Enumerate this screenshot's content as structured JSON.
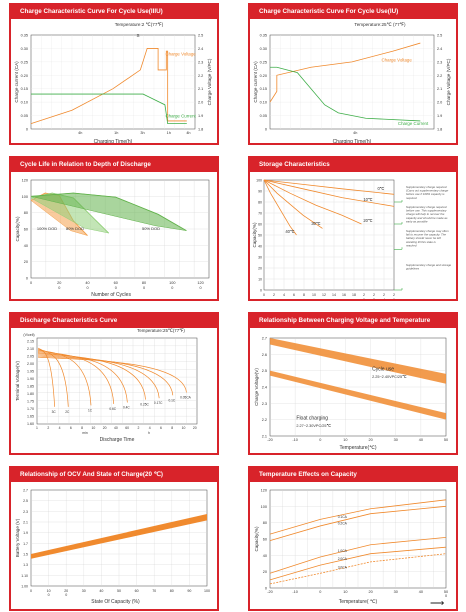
{
  "panels": [
    {
      "id": "p1",
      "title": "Charge Characteristic Curve For Cycle Use(IIIU)",
      "chart_data": {
        "type": "line",
        "temperature": "Temperature:2 ℃(77℉)",
        "xlabel": "Charging Time(h)",
        "ylabel_left": "Charge current (CA)",
        "ylabel_right": "Charge Voltage (V/PC)",
        "ylim_left": [
          0,
          0.35
        ],
        "yticks_left": [
          "0.35",
          "0.30",
          "0.25",
          "0.20",
          "0.15",
          "0.10",
          "0.05",
          "0"
        ],
        "yticks_right": [
          "2.5",
          "2.4",
          "2.3",
          "2.2",
          "2.1",
          "2.0",
          "1.9",
          "1.8"
        ],
        "xticks": [
          "4h",
          "1h",
          "3h",
          "1h",
          "4h"
        ],
        "label_s": "S",
        "series": [
          {
            "name": "Charge Voltage",
            "color": "#f08a2e",
            "points": [
              [
                0,
                0.02
              ],
              [
                3,
                0.07
              ],
              [
                6,
                0.15
              ],
              [
                8,
                0.22
              ],
              [
                8.5,
                0.3
              ],
              [
                9.3,
                0.3
              ],
              [
                9.3,
                0.22
              ],
              [
                9.9,
                0.22
              ],
              [
                9.9,
                0.29
              ],
              [
                10,
                0.29
              ],
              [
                10,
                0.03
              ],
              [
                11.4,
                0.03
              ]
            ]
          },
          {
            "name": "Charge Current",
            "color": "#3fae49",
            "points": [
              [
                0,
                0.13
              ],
              [
                8.2,
                0.13
              ],
              [
                8.6,
                0.12
              ],
              [
                9.8,
                0.09
              ],
              [
                10,
                0.02
              ],
              [
                11.4,
                0.02
              ]
            ]
          }
        ]
      }
    },
    {
      "id": "p2",
      "title": "Charge Characteristic Curve For Cycle Use(IU)",
      "chart_data": {
        "type": "line",
        "temperature": "Temperature:25℃ (77℉)",
        "xlabel": "Charging Time(h)",
        "ylabel_left": "Charge current (CA)",
        "ylabel_right": "Charge Voltage (V/PC)",
        "ylim_left": [
          0,
          0.35
        ],
        "yticks_left": [
          "0.35",
          "0.30",
          "0.25",
          "0.20",
          "0.15",
          "0.10",
          "0.05",
          "0"
        ],
        "yticks_right": [
          "2.5",
          "2.4",
          "2.3",
          "2.2",
          "2.1",
          "2.0",
          "1.9",
          "1.8"
        ],
        "xticks": [
          "4h"
        ],
        "series": [
          {
            "name": "Charge Voltage",
            "color": "#f08a2e",
            "points": [
              [
                0,
                0.1
              ],
              [
                0.5,
                0.14
              ],
              [
                0.5,
                0.2
              ],
              [
                3,
                0.23
              ],
              [
                6,
                0.25
              ],
              [
                9,
                0.29
              ],
              [
                11,
                0.32
              ]
            ]
          },
          {
            "name": "Charge Current",
            "color": "#3fae49",
            "points": [
              [
                0,
                0.23
              ],
              [
                0.5,
                0.23
              ],
              [
                2,
                0.21
              ],
              [
                4,
                0.09
              ],
              [
                5,
                0.06
              ],
              [
                7,
                0.04
              ],
              [
                11,
                0.03
              ]
            ]
          }
        ]
      }
    },
    {
      "id": "p3",
      "title": "Cycle Life in Relation to Depth of Discharge",
      "chart_data": {
        "type": "line",
        "xlabel": "Number of Cycles",
        "ylabel": "Capacity(%)",
        "xlim": [
          0,
          120
        ],
        "ylim": [
          0,
          120
        ],
        "xticks": [
          "0",
          "20",
          "40",
          "60",
          "80",
          "100",
          "120"
        ],
        "xticks_sub": [
          "",
          "0",
          "0",
          "0",
          "0",
          "0",
          "0"
        ],
        "yticks": [
          "120",
          "100",
          "80",
          "60",
          "40",
          "20",
          "0"
        ],
        "series": [
          {
            "name": "100% DOD",
            "color": "#f4a04c",
            "points": [
              [
                0,
                95
              ],
              [
                10,
                104
              ],
              [
                20,
                101
              ],
              [
                30,
                70
              ],
              [
                40,
                52
              ]
            ]
          },
          {
            "name": "80% DOD",
            "color": "#92cf7a",
            "points": [
              [
                0,
                98
              ],
              [
                15,
                104
              ],
              [
                30,
                98
              ],
              [
                45,
                72
              ],
              [
                55,
                55
              ]
            ]
          },
          {
            "name": "50% DOD",
            "color": "#63b34d",
            "points": [
              [
                0,
                100
              ],
              [
                30,
                104
              ],
              [
                60,
                99
              ],
              [
                90,
                78
              ],
              [
                110,
                58
              ]
            ]
          }
        ]
      }
    },
    {
      "id": "p4",
      "title": "Storage Characteristics",
      "chart_data": {
        "type": "line",
        "xlabel": "Storage Time(months)",
        "ylabel": "Capacity(%)",
        "xlim": [
          0,
          20
        ],
        "ylim": [
          0,
          100
        ],
        "xticks": [
          "0",
          "2",
          "4",
          "6",
          "8",
          "10",
          "12",
          "14",
          "16",
          "18",
          "2",
          "2",
          "2",
          "2"
        ],
        "xticks_sub": [
          "",
          "",
          "",
          "",
          "",
          "",
          "",
          "",
          "",
          "",
          "0",
          "2",
          "4",
          "6"
        ],
        "yticks": [
          "100",
          "90",
          "80",
          "70",
          "60",
          "50",
          "40",
          "30",
          "20",
          "10",
          "0"
        ],
        "series": [
          {
            "name": "0℃",
            "color": "#f08a2e",
            "points": [
              [
                0,
                100
              ],
              [
                6,
                96
              ],
              [
                12,
                92
              ],
              [
                20,
                87
              ]
            ]
          },
          {
            "name": "10℃",
            "color": "#f08a2e",
            "points": [
              [
                0,
                100
              ],
              [
                6,
                92
              ],
              [
                12,
                84
              ],
              [
                20,
                76
              ]
            ]
          },
          {
            "name": "20℃",
            "color": "#f08a2e",
            "points": [
              [
                0,
                100
              ],
              [
                4,
                88
              ],
              [
                8,
                77
              ],
              [
                12,
                68
              ],
              [
                15,
                60
              ]
            ]
          },
          {
            "name": "30℃",
            "color": "#f08a2e",
            "points": [
              [
                0,
                100
              ],
              [
                2,
                88
              ],
              [
                4,
                78
              ],
              [
                6,
                68
              ],
              [
                9,
                56
              ]
            ]
          },
          {
            "name": "40℃",
            "color": "#f08a2e",
            "points": [
              [
                0,
                100
              ],
              [
                1,
                88
              ],
              [
                2,
                78
              ],
              [
                3,
                68
              ],
              [
                4,
                58
              ],
              [
                5,
                50
              ]
            ]
          }
        ],
        "notes": [
          "Supplementary charge required (Carry out supplementary charge before use if 100% capacity is required",
          "Supplementary charge required before use. This supplementary charge will help to recover the capacity and should be made as early as possible",
          "Supplementary charge may often fail to recover the capacity. The battery should never be left standing till this state is reached",
          "Supplementary charge and storage guidelines"
        ]
      }
    },
    {
      "id": "p5",
      "title": "Discharge Characteristics Curve",
      "chart_data": {
        "type": "line",
        "temperature": "Temperature:25℃(77℉)",
        "xlabel": "Discharge Time",
        "ylabel": "Terminal Voltage(V)",
        "ylim": [
          1.6,
          2.2
        ],
        "yticks": [
          "2.15",
          "2.10",
          "2.05",
          "2.00",
          "1.95",
          "1.90",
          "1.85",
          "1.80",
          "1.75",
          "1.70",
          "1.65",
          "1.60"
        ],
        "xticks": [
          "1",
          "2",
          "4",
          "6",
          "8",
          "10",
          "20",
          "40",
          "60",
          "2",
          "4",
          "6",
          "8",
          "10",
          "20"
        ],
        "axis_top": "(V/cell)",
        "sub_labels": [
          "min",
          "h"
        ],
        "curve_labels": [
          "3C",
          "2C",
          "1C",
          "0.6C",
          "0.4C",
          "0.25C",
          "0.17C",
          "0.1C",
          "0.05CA"
        ],
        "curves": [
          [
            15,
            1.72
          ],
          [
            30,
            1.72
          ],
          [
            55,
            1.73
          ],
          [
            80,
            1.74
          ],
          [
            95,
            1.75
          ],
          [
            115,
            1.77
          ],
          [
            130,
            1.78
          ],
          [
            145,
            1.8
          ],
          [
            160,
            1.82
          ]
        ]
      }
    },
    {
      "id": "p6",
      "title": "Relationship Between Charging Voltage and Temperature",
      "chart_data": {
        "type": "area",
        "xlabel": "Temperature(℃)",
        "ylabel": "Charge Voltage(V)",
        "xlim": [
          -20,
          50
        ],
        "ylim": [
          2.1,
          2.7
        ],
        "xticks": [
          "-20",
          "-10",
          "0",
          "10",
          "20",
          "30",
          "40",
          "50"
        ],
        "yticks": [
          "2.7",
          "2.6",
          "2.5",
          "2.4",
          "2.3",
          "2.2",
          "2.1"
        ],
        "bands": [
          {
            "name": "Cycle use",
            "sub": "2.25~2.40VPC/25℃",
            "top": [
              [
                -20,
                2.7
              ],
              [
                50,
                2.48
              ]
            ],
            "bottom": [
              [
                -20,
                2.66
              ],
              [
                50,
                2.42
              ]
            ]
          },
          {
            "name": "Float charging",
            "sub": "2.27~2.30VPC/25℃",
            "top": [
              [
                -20,
                2.5
              ],
              [
                50,
                2.24
              ]
            ],
            "bottom": [
              [
                -20,
                2.47
              ],
              [
                50,
                2.2
              ]
            ]
          }
        ]
      }
    },
    {
      "id": "p7",
      "title": "Relationship of OCV And State of Charge(20  ℃)",
      "chart_data": {
        "type": "area",
        "xlabel": "State Of Capacity (%)",
        "ylabel": "Battery Voltage (V)",
        "xlim": [
          0,
          100
        ],
        "ylim": [
          1.95,
          2.2
        ],
        "xticks": [
          "0",
          "10",
          "20",
          "30",
          "40",
          "50",
          "60",
          "70",
          "80",
          "90",
          "100"
        ],
        "xticks_sub": [
          "",
          "0",
          "0",
          "",
          "",
          "",
          "",
          "",
          "",
          "",
          ""
        ],
        "yticks": [
          "2.7",
          "2.5",
          "2.3",
          "2.1",
          "1.9",
          "1.7",
          "1.5",
          "1.3",
          "1.10",
          "1.00"
        ],
        "band": {
          "top": [
            [
              0,
              2.3
            ],
            [
              100,
              2.55
            ]
          ],
          "bottom": [
            [
              0,
              2.27
            ],
            [
              100,
              2.51
            ]
          ]
        }
      }
    },
    {
      "id": "p8",
      "title": "Temperature Effects on Capacity",
      "chart_data": {
        "type": "line",
        "xlabel": "Temperature( ℃)",
        "ylabel": "Capacity(%)",
        "xlim": [
          -20,
          50
        ],
        "ylim": [
          0,
          120
        ],
        "xticks": [
          "-20",
          "-10",
          "0",
          "10",
          "20",
          "30",
          "40",
          "50"
        ],
        "xticks_sub": [
          "",
          "",
          "",
          "",
          "",
          "",
          "",
          "0"
        ],
        "yticks": [
          "120",
          "100",
          "80",
          "60",
          "40",
          "20",
          "0"
        ],
        "series": [
          {
            "name": "0.1CA",
            "color": "#f08a2e",
            "dashed": false,
            "points": [
              [
                -20,
                66
              ],
              [
                0,
                84
              ],
              [
                20,
                97
              ],
              [
                50,
                108
              ]
            ]
          },
          {
            "name": "0.2CA",
            "color": "#f08a2e",
            "dashed": false,
            "points": [
              [
                -20,
                58
              ],
              [
                0,
                76
              ],
              [
                20,
                91
              ],
              [
                50,
                100
              ]
            ]
          },
          {
            "name": "1.0CA",
            "color": "#f08a2e",
            "dashed": false,
            "points": [
              [
                -20,
                18
              ],
              [
                0,
                38
              ],
              [
                20,
                53
              ],
              [
                50,
                62
              ]
            ]
          },
          {
            "name": "2.0CA",
            "color": "#f08a2e",
            "dashed": false,
            "points": [
              [
                -20,
                10
              ],
              [
                0,
                28
              ],
              [
                20,
                42
              ],
              [
                50,
                50
              ]
            ]
          },
          {
            "name": "3.0CA",
            "color": "#f08a2e",
            "dashed": true,
            "points": [
              [
                -20,
                5
              ],
              [
                0,
                18
              ],
              [
                20,
                32
              ],
              [
                50,
                42
              ]
            ]
          }
        ]
      }
    }
  ]
}
